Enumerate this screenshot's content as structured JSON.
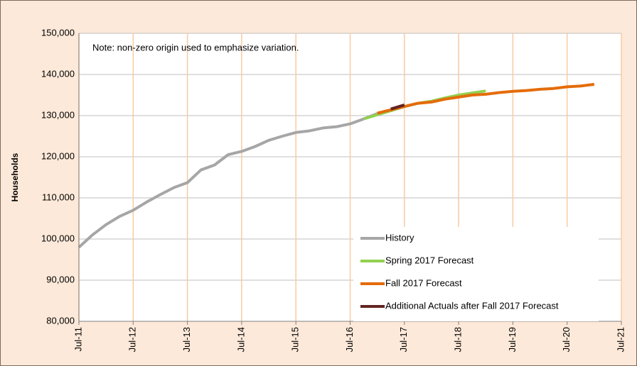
{
  "chart_data": {
    "type": "line",
    "annotation": "Note: non-zero origin used to emphasize variation.",
    "y_label": "Households",
    "categories": [
      "Jul-11",
      null,
      null,
      null,
      "Jul-12",
      null,
      null,
      null,
      "Jul-13",
      null,
      null,
      null,
      "Jul-14",
      null,
      null,
      null,
      "Jul-15",
      null,
      null,
      null,
      "Jul-16",
      null,
      null,
      null,
      "Jul-17",
      null,
      null,
      null,
      "Jul-18",
      null,
      null,
      null,
      "Jul-19",
      null,
      null,
      null,
      "Jul-20",
      null,
      null,
      null,
      "Jul-21"
    ],
    "series": [
      {
        "name": "History",
        "color": "#a6a6a6",
        "values": [
          98000,
          101000,
          103500,
          105500,
          107000,
          109000,
          110800,
          112500,
          113700,
          116800,
          118000,
          120500,
          121300,
          122500,
          124000,
          125000,
          125900,
          126300,
          127000,
          127300,
          128000,
          129200,
          130500,
          null,
          null,
          null,
          null,
          null,
          null,
          null,
          null,
          null,
          null,
          null,
          null,
          null,
          null,
          null,
          null,
          null,
          null
        ]
      },
      {
        "name": "Spring 2017 Forecast",
        "color": "#92d050",
        "values": [
          null,
          null,
          null,
          null,
          null,
          null,
          null,
          null,
          null,
          null,
          null,
          null,
          null,
          null,
          null,
          null,
          null,
          null,
          null,
          null,
          null,
          129200,
          130200,
          131200,
          132200,
          133000,
          133500,
          134300,
          135000,
          135500,
          136000,
          null,
          null,
          null,
          null,
          null,
          null,
          null,
          null,
          null,
          null
        ]
      },
      {
        "name": "Fall 2017 Forecast",
        "color": "#e46c0a",
        "values": [
          null,
          null,
          null,
          null,
          null,
          null,
          null,
          null,
          null,
          null,
          null,
          null,
          null,
          null,
          null,
          null,
          null,
          null,
          null,
          null,
          null,
          null,
          130600,
          131400,
          132200,
          133000,
          133300,
          134000,
          134500,
          135000,
          135200,
          135600,
          135900,
          136100,
          136400,
          136600,
          137000,
          137200,
          137600,
          null,
          null
        ]
      },
      {
        "name": "Additional Actuals after Fall 2017 Forecast",
        "color": "#632523",
        "values": [
          null,
          null,
          null,
          null,
          null,
          null,
          null,
          null,
          null,
          null,
          null,
          null,
          null,
          null,
          null,
          null,
          null,
          null,
          null,
          null,
          null,
          null,
          null,
          131600,
          132600,
          null,
          null,
          null,
          null,
          null,
          null,
          null,
          null,
          null,
          null,
          null,
          null,
          null,
          null,
          null,
          null
        ]
      }
    ],
    "ylim": [
      80000,
      150000
    ],
    "yticks": [
      {
        "value": 80000,
        "label": "80,000"
      },
      {
        "value": 90000,
        "label": "90,000"
      },
      {
        "value": 100000,
        "label": "100,000"
      },
      {
        "value": 110000,
        "label": "110,000"
      },
      {
        "value": 120000,
        "label": "120,000"
      },
      {
        "value": 130000,
        "label": "130,000"
      },
      {
        "value": 140000,
        "label": "140,000"
      },
      {
        "value": 150000,
        "label": "150,000"
      }
    ],
    "grid": true,
    "legend": "lower right"
  }
}
